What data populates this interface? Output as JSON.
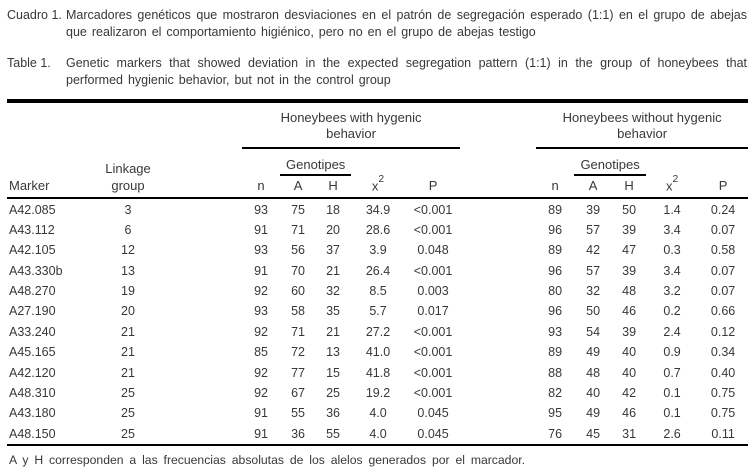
{
  "captions": [
    {
      "label": "Cuadro 1.",
      "text": "Marcadores genéticos que mostraron desviaciones en el patrón de segregación esperado (1:1) en el grupo de abejas que realizaron el comportamiento higiénico, pero no en el grupo de abejas testigo"
    },
    {
      "label": "Table 1.",
      "text": "Genetic markers that showed deviation in the expected segregation pattern (1:1) in the group of honeybees that performed hygienic behavior, but not in the control group"
    }
  ],
  "table": {
    "group_headers": {
      "hygienic": "Honeybees with hygenic behavior",
      "control": "Honeybees without hygenic behavior"
    },
    "genotypes_label": "Genotipes",
    "headers": {
      "marker": "Marker",
      "linkage_line1": "Linkage",
      "linkage_line2": "group",
      "n": "n",
      "a": "A",
      "h": "H",
      "chi_base": "x",
      "chi_exp": "2",
      "p": "P"
    },
    "rows": [
      [
        "A42.085",
        "3",
        "93",
        "75",
        "18",
        "34.9",
        "<0.001",
        "89",
        "39",
        "50",
        "1.4",
        "0.24"
      ],
      [
        "A43.112",
        "6",
        "91",
        "71",
        "20",
        "28.6",
        "<0.001",
        "96",
        "57",
        "39",
        "3.4",
        "0.07"
      ],
      [
        "A42.105",
        "12",
        "93",
        "56",
        "37",
        "3.9",
        "0.048",
        "89",
        "42",
        "47",
        "0.3",
        "0.58"
      ],
      [
        "A43.330b",
        "13",
        "91",
        "70",
        "21",
        "26.4",
        "<0.001",
        "96",
        "57",
        "39",
        "3.4",
        "0.07"
      ],
      [
        "A48.270",
        "19",
        "92",
        "60",
        "32",
        "8.5",
        "0.003",
        "80",
        "32",
        "48",
        "3.2",
        "0.07"
      ],
      [
        "A27.190",
        "20",
        "93",
        "58",
        "35",
        "5.7",
        "0.017",
        "96",
        "50",
        "46",
        "0.2",
        "0.66"
      ],
      [
        "A33.240",
        "21",
        "92",
        "71",
        "21",
        "27.2",
        "<0.001",
        "93",
        "54",
        "39",
        "2.4",
        "0.12"
      ],
      [
        "A45.165",
        "21",
        "85",
        "72",
        "13",
        "41.0",
        "<0.001",
        "89",
        "49",
        "40",
        "0.9",
        "0.34"
      ],
      [
        "A42.120",
        "21",
        "92",
        "77",
        "15",
        "41.8",
        "<0.001",
        "88",
        "48",
        "40",
        "0.7",
        "0.40"
      ],
      [
        "A48.310",
        "25",
        "92",
        "67",
        "25",
        "19.2",
        "<0.001",
        "82",
        "40",
        "42",
        "0.1",
        "0.75"
      ],
      [
        "A43.180",
        "25",
        "91",
        "55",
        "36",
        "4.0",
        "0.045",
        "95",
        "49",
        "46",
        "0.1",
        "0.75"
      ],
      [
        "A48.150",
        "25",
        "91",
        "36",
        "55",
        "4.0",
        "0.045",
        "76",
        "45",
        "31",
        "2.6",
        "0.11"
      ]
    ]
  },
  "footnote": "A y H corresponden a las frecuencias absolutas de los alelos generados por el marcador."
}
